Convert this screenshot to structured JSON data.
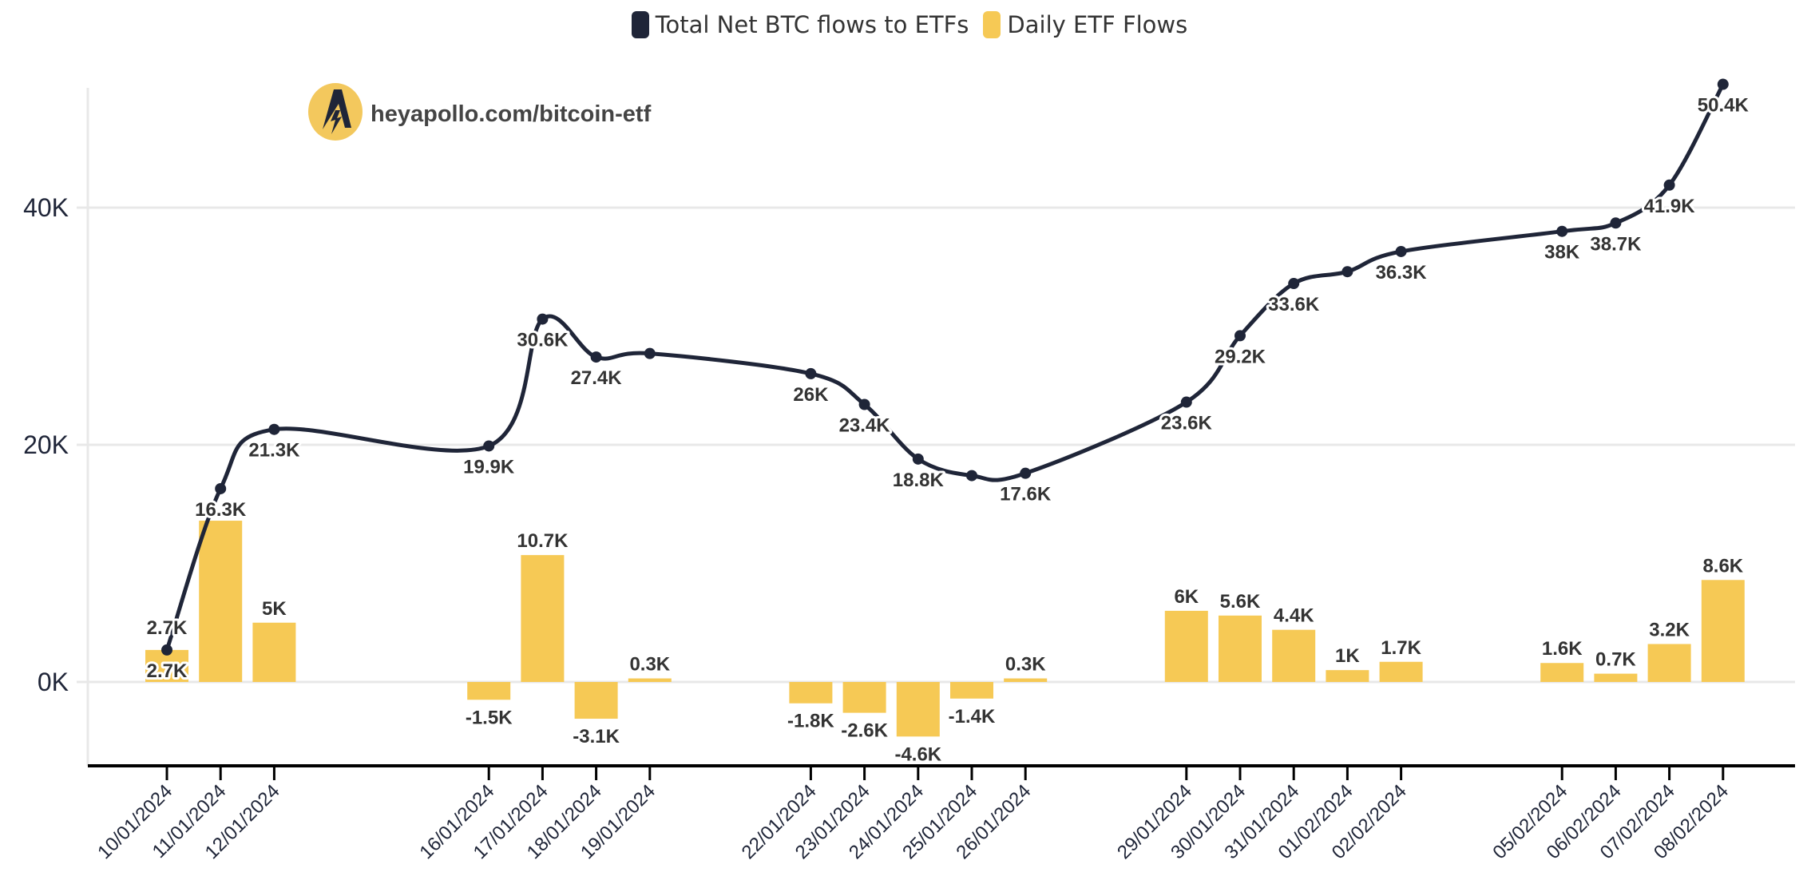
{
  "legend": {
    "line_label": "Total Net BTC flows to ETFs",
    "bar_label": "Daily ETF Flows"
  },
  "watermark": {
    "text": "heyapollo.com/bitcoin-etf",
    "icon": "apollo-logo-icon"
  },
  "colors": {
    "line": "#1f2538",
    "bar": "#f6c955",
    "grid": "#e8e8e8",
    "logo_bg": "#f3c85d"
  },
  "chart_data": {
    "type": "bar+line",
    "title": "",
    "xlabel": "",
    "ylabel": "",
    "ylim": [
      -7000,
      50000
    ],
    "yticks": [
      "0K",
      "20K",
      "40K"
    ],
    "ytick_values": [
      0,
      20000,
      40000
    ],
    "grid": "horizontal",
    "legend_position": "top-center",
    "categories": [
      "10/01/2024",
      "11/01/2024",
      "12/01/2024",
      "16/01/2024",
      "17/01/2024",
      "18/01/2024",
      "19/01/2024",
      "22/01/2024",
      "23/01/2024",
      "24/01/2024",
      "25/01/2024",
      "26/01/2024",
      "29/01/2024",
      "30/01/2024",
      "31/01/2024",
      "01/02/2024",
      "02/02/2024",
      "05/02/2024",
      "06/02/2024",
      "07/02/2024",
      "08/02/2024"
    ],
    "series": [
      {
        "name": "Total Net BTC flows to ETFs",
        "type": "line",
        "values": [
          2700,
          16300,
          21300,
          19900,
          30600,
          27400,
          27700,
          26000,
          23400,
          18800,
          17400,
          17600,
          23600,
          29200,
          33600,
          34600,
          36300,
          38000,
          38700,
          41900,
          50400
        ],
        "labels": [
          "2.7K",
          "16.3K",
          "21.3K",
          "19.9K",
          "30.6K",
          "27.4K",
          null,
          "26K",
          "23.4K",
          "18.8K",
          null,
          "17.6K",
          "23.6K",
          "29.2K",
          "33.6K",
          null,
          "36.3K",
          "38K",
          "38.7K",
          "41.9K",
          "50.4K"
        ]
      },
      {
        "name": "Daily ETF Flows",
        "type": "bar",
        "values": [
          2700,
          13600,
          5000,
          -1500,
          10700,
          -3100,
          300,
          -1800,
          -2600,
          -4600,
          -1400,
          300,
          6000,
          5600,
          4400,
          1000,
          1700,
          1600,
          700,
          3200,
          8600
        ],
        "labels": [
          "2.7K",
          null,
          "5K",
          "-1.5K",
          "10.7K",
          "-3.1K",
          "0.3K",
          "-1.8K",
          "-2.6K",
          "-4.6K",
          "-1.4K",
          "0.3K",
          "6K",
          "5.6K",
          "4.4K",
          "1K",
          "1.7K",
          "1.6K",
          "0.7K",
          "3.2K",
          "8.6K"
        ]
      }
    ]
  }
}
